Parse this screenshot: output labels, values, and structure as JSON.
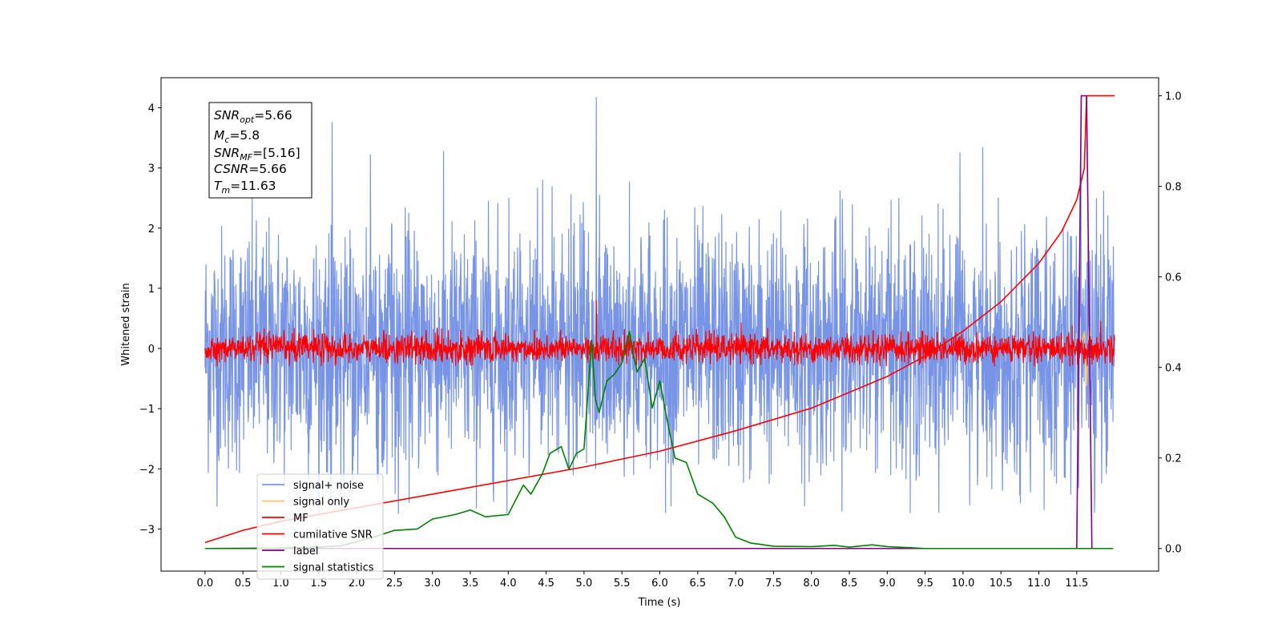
{
  "chart_data": {
    "type": "line",
    "xlabel": "Time (s)",
    "ylabel": "Whitened strain",
    "xlim": [
      -0.58,
      12.58
    ],
    "ylim": [
      -3.7,
      4.5
    ],
    "y2lim": [
      -0.05,
      1.04
    ],
    "xticks": [
      "0.0",
      "0.5",
      "1.0",
      "1.5",
      "2.0",
      "2.5",
      "3.0",
      "3.5",
      "4.0",
      "4.5",
      "5.0",
      "5.5",
      "6.0",
      "6.5",
      "7.0",
      "7.5",
      "8.0",
      "8.5",
      "9.0",
      "9.5",
      "10.0",
      "10.5",
      "11.0",
      "11.5"
    ],
    "yticks_left": [
      "−3",
      "−2",
      "−1",
      "0",
      "1",
      "2",
      "3",
      "4"
    ],
    "yticks_right": [
      "0.0",
      "0.2",
      "0.4",
      "0.6",
      "0.8",
      "1.0"
    ],
    "annotation": {
      "snr_opt": {
        "base": "SNR",
        "sub": "opt",
        "value": "=5.66"
      },
      "mc": {
        "base": "M",
        "sub": "c",
        "value": "=5.8"
      },
      "snr_mf": {
        "base": "SNR",
        "sub": "MF",
        "value": "=[5.16]"
      },
      "csnr": {
        "base": "CSNR",
        "sub": "",
        "value": "=5.66"
      },
      "tm": {
        "base": "T",
        "sub": "m",
        "value": "=11.63"
      }
    },
    "legend": {
      "placement": "lower-left",
      "entries": [
        {
          "label": "signal+ noise",
          "color": "#7894e6"
        },
        {
          "label": "signal only",
          "color": "#f5c46b"
        },
        {
          "label": "MF",
          "color": "#ff0000"
        },
        {
          "label": "cumilative SNR",
          "color": "#ff0000"
        },
        {
          "label": "label",
          "color": "#800080"
        },
        {
          "label": "signal statistics",
          "color": "#008000"
        }
      ]
    },
    "series": [
      {
        "name": "signal+ noise",
        "axis": "left",
        "color": "#7894e6",
        "generated": true,
        "t_start": 0.0,
        "t_end": 12.0,
        "std": 1.0,
        "min": -2.75,
        "max": 4.17
      },
      {
        "name": "MF",
        "axis": "left",
        "color": "#ff0000",
        "generated": true,
        "t_start": 0.0,
        "t_end": 12.0,
        "std": 0.12,
        "min": -0.3,
        "max": 0.8
      },
      {
        "name": "signal only",
        "axis": "left",
        "color": "#f5c46b",
        "x": [
          11.55,
          11.6,
          11.63,
          11.66,
          11.7
        ],
        "y": [
          0.0,
          0.28,
          -0.62,
          0.35,
          0.0
        ]
      },
      {
        "name": "cumilative SNR",
        "axis": "right",
        "color": "#ff0000",
        "x": [
          0.0,
          0.5,
          1.0,
          2.0,
          3.0,
          4.0,
          5.0,
          6.0,
          7.0,
          8.0,
          9.0,
          9.5,
          10.0,
          10.5,
          11.0,
          11.3,
          11.5,
          11.6,
          11.63,
          12.0
        ],
        "y": [
          0.013,
          0.04,
          0.06,
          0.09,
          0.12,
          0.15,
          0.18,
          0.215,
          0.26,
          0.31,
          0.38,
          0.425,
          0.48,
          0.545,
          0.63,
          0.7,
          0.77,
          0.84,
          1.0,
          1.0
        ]
      },
      {
        "name": "label",
        "axis": "right",
        "color": "#800080",
        "x": [
          0.0,
          11.5,
          11.56,
          11.63,
          11.7,
          11.98
        ],
        "y": [
          0.0,
          0.0,
          1.0,
          1.0,
          0.0,
          0.0
        ]
      },
      {
        "name": "signal statistics",
        "axis": "right",
        "color": "#008000",
        "x": [
          0.0,
          1.0,
          1.5,
          1.8,
          2.0,
          2.2,
          2.5,
          2.8,
          3.0,
          3.3,
          3.5,
          3.7,
          4.0,
          4.2,
          4.3,
          4.45,
          4.55,
          4.7,
          4.8,
          4.9,
          5.0,
          5.1,
          5.15,
          5.2,
          5.3,
          5.4,
          5.5,
          5.6,
          5.65,
          5.7,
          5.8,
          5.9,
          6.0,
          6.1,
          6.2,
          6.35,
          6.5,
          6.6,
          6.7,
          6.85,
          7.0,
          7.2,
          7.5,
          8.0,
          8.3,
          8.5,
          8.8,
          9.0,
          9.5,
          10.0,
          11.0,
          11.98
        ],
        "y": [
          0.0,
          0.001,
          0.003,
          0.006,
          0.015,
          0.024,
          0.04,
          0.043,
          0.065,
          0.075,
          0.085,
          0.07,
          0.075,
          0.14,
          0.12,
          0.165,
          0.21,
          0.225,
          0.175,
          0.21,
          0.22,
          0.46,
          0.33,
          0.3,
          0.37,
          0.385,
          0.41,
          0.48,
          0.43,
          0.39,
          0.42,
          0.31,
          0.37,
          0.28,
          0.2,
          0.19,
          0.12,
          0.11,
          0.1,
          0.07,
          0.025,
          0.012,
          0.005,
          0.004,
          0.007,
          0.003,
          0.008,
          0.004,
          0.0,
          0.0,
          0.0,
          0.0
        ]
      }
    ]
  }
}
